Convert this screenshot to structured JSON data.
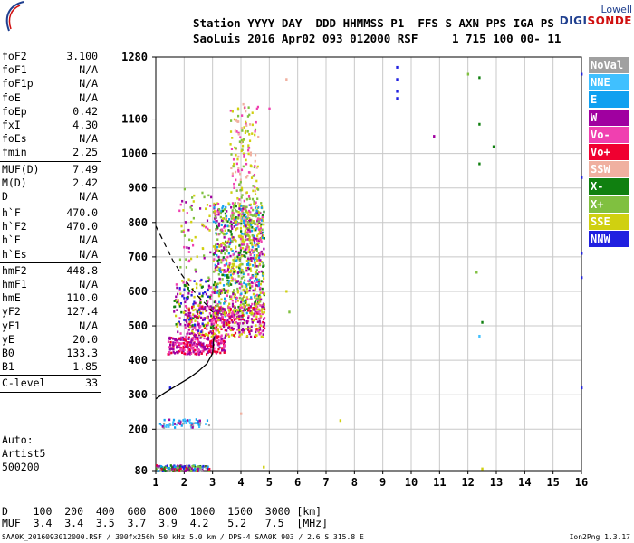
{
  "logo": {
    "line1": "Lowell",
    "line2a": "DIGI",
    "line2b": "SONDE"
  },
  "header": {
    "labels": "Station YYYY DAY  DDD HHMMSS P1  FFS S AXN PPS IGA PS",
    "values": "SaoLuis 2016 Apr02 093 012000 RSF     1 715 100 00- 11"
  },
  "params": [
    {
      "label": "foF2",
      "value": "3.100"
    },
    {
      "label": "foF1",
      "value": "N/A"
    },
    {
      "label": "foF1p",
      "value": "N/A"
    },
    {
      "label": "foE",
      "value": "N/A"
    },
    {
      "label": "foEp",
      "value": "0.42"
    },
    {
      "label": "fxI",
      "value": "4.30"
    },
    {
      "label": "foEs",
      "value": "N/A"
    },
    {
      "label": "fmin",
      "value": "2.25"
    },
    {
      "sep": true
    },
    {
      "label": "MUF(D)",
      "value": "7.49"
    },
    {
      "label": "M(D)",
      "value": "2.42"
    },
    {
      "label": "D",
      "value": "N/A"
    },
    {
      "sep": true
    },
    {
      "label": "h`F",
      "value": "470.0"
    },
    {
      "label": "h`F2",
      "value": "470.0"
    },
    {
      "label": "h`E",
      "value": "N/A"
    },
    {
      "label": "h`Es",
      "value": "N/A"
    },
    {
      "sep": true
    },
    {
      "label": "hmF2",
      "value": "448.8"
    },
    {
      "label": "hmF1",
      "value": "N/A"
    },
    {
      "label": "hmE",
      "value": "110.0"
    },
    {
      "label": "yF2",
      "value": "127.4"
    },
    {
      "label": "yF1",
      "value": "N/A"
    },
    {
      "label": "yE",
      "value": "20.0"
    },
    {
      "label": "B0",
      "value": "133.3"
    },
    {
      "label": "B1",
      "value": "1.85"
    },
    {
      "sep": true
    },
    {
      "label": "C-level",
      "value": "33"
    },
    {
      "sep": true
    }
  ],
  "auto": {
    "line1": "Auto:",
    "line2": "Artist5",
    "line3": "500200"
  },
  "legend": [
    {
      "label": "NoVal",
      "color": "#a0a0a0"
    },
    {
      "label": "NNE",
      "color": "#40c0ff"
    },
    {
      "label": "E",
      "color": "#10a0f0"
    },
    {
      "label": "W",
      "color": "#a000a0"
    },
    {
      "label": "Vo-",
      "color": "#f040b0"
    },
    {
      "label": "Vo+",
      "color": "#f00030"
    },
    {
      "label": "SSW",
      "color": "#f0b0a0"
    },
    {
      "label": "X-",
      "color": "#108010"
    },
    {
      "label": "X+",
      "color": "#80c040"
    },
    {
      "label": "SSE",
      "color": "#d0d010"
    },
    {
      "label": "NNW",
      "color": "#2020e0"
    }
  ],
  "table": {
    "row1": "D    100  200  400  600  800  1000  1500  3000 [km]",
    "row2": "MUF  3.4  3.4  3.5  3.7  3.9  4.2   5.2   7.5  [MHz]"
  },
  "footer": {
    "left": "SAA0K_2016093012000.RSF / 300fx256h 50 kHz 5.0 km / DPS-4 SAA0K 903 / 2.6 S 315.8 E",
    "right": "Ion2Png 1.3.17"
  },
  "chart_data": {
    "type": "scatter",
    "xlim": [
      1,
      16
    ],
    "ylim": [
      80,
      1280
    ],
    "x_ticks": [
      1,
      2,
      3,
      4,
      5,
      6,
      7,
      8,
      9,
      10,
      11,
      12,
      13,
      14,
      15,
      16
    ],
    "y_ticks": [
      80,
      200,
      300,
      400,
      500,
      600,
      700,
      800,
      900,
      1000,
      1100,
      1280
    ],
    "grid": true,
    "trace": [
      [
        1.0,
        288
      ],
      [
        1.3,
        305
      ],
      [
        1.6,
        320
      ],
      [
        1.9,
        335
      ],
      [
        2.2,
        350
      ],
      [
        2.5,
        368
      ],
      [
        2.8,
        390
      ],
      [
        3.0,
        420
      ],
      [
        3.05,
        470
      ]
    ],
    "dashed_trace": [
      [
        1.0,
        790
      ],
      [
        1.3,
        740
      ],
      [
        1.6,
        690
      ],
      [
        1.9,
        650
      ],
      [
        2.2,
        615
      ],
      [
        2.5,
        585
      ],
      [
        2.8,
        560
      ],
      [
        3.0,
        540
      ]
    ],
    "clusters": [
      {
        "x": [
          3.0,
          4.8
        ],
        "y": [
          530,
          860
        ],
        "colors": [
          "SSE",
          "SSE",
          "X+",
          "X-",
          "W",
          "Vo-",
          "E"
        ],
        "n": 900
      },
      {
        "x": [
          3.6,
          4.6
        ],
        "y": [
          800,
          1150
        ],
        "colors": [
          "SSE",
          "Vo-",
          "SSW",
          "X+"
        ],
        "n": 180
      },
      {
        "x": [
          2.0,
          4.8
        ],
        "y": [
          470,
          560
        ],
        "colors": [
          "Vo+",
          "Vo-",
          "W",
          "SSE"
        ],
        "n": 400
      },
      {
        "x": [
          1.4,
          3.4
        ],
        "y": [
          420,
          470
        ],
        "colors": [
          "Vo+",
          "Vo-",
          "W"
        ],
        "n": 260
      },
      {
        "x": [
          1.6,
          3.0
        ],
        "y": [
          480,
          640
        ],
        "colors": [
          "W",
          "SSE",
          "X-",
          "Vo-",
          "NNW"
        ],
        "n": 150
      },
      {
        "x": [
          1.8,
          3.2
        ],
        "y": [
          640,
          900
        ],
        "colors": [
          "W",
          "Vo-",
          "X+",
          "SSE"
        ],
        "n": 70
      },
      {
        "x": [
          1.0,
          2.9
        ],
        "y": [
          82,
          98
        ],
        "colors": [
          "X-",
          "W",
          "X+",
          "Vo+",
          "NNW",
          "E",
          "NoVal"
        ],
        "n": 140
      },
      {
        "x": [
          1.1,
          2.9
        ],
        "y": [
          208,
          232
        ],
        "colors": [
          "E",
          "NoVal",
          "NNE",
          "W"
        ],
        "n": 60
      }
    ],
    "isolated_points": [
      {
        "x": 9.5,
        "y": 1250,
        "c": "NNW"
      },
      {
        "x": 9.5,
        "y": 1215,
        "c": "NNW"
      },
      {
        "x": 9.5,
        "y": 1180,
        "c": "NNW"
      },
      {
        "x": 9.5,
        "y": 1160,
        "c": "NNW"
      },
      {
        "x": 10.8,
        "y": 1050,
        "c": "W"
      },
      {
        "x": 12.4,
        "y": 1220,
        "c": "X-"
      },
      {
        "x": 12.4,
        "y": 1085,
        "c": "X-"
      },
      {
        "x": 12.4,
        "y": 970,
        "c": "X-"
      },
      {
        "x": 12.9,
        "y": 1020,
        "c": "X-"
      },
      {
        "x": 12.5,
        "y": 510,
        "c": "X-"
      },
      {
        "x": 12.4,
        "y": 470,
        "c": "NNE"
      },
      {
        "x": 12.3,
        "y": 655,
        "c": "X+"
      },
      {
        "x": 16.0,
        "y": 1230,
        "c": "NNW"
      },
      {
        "x": 16.0,
        "y": 930,
        "c": "NNW"
      },
      {
        "x": 16.0,
        "y": 710,
        "c": "NNW"
      },
      {
        "x": 16.0,
        "y": 640,
        "c": "NNW"
      },
      {
        "x": 16.0,
        "y": 320,
        "c": "NNW"
      },
      {
        "x": 7.5,
        "y": 225,
        "c": "SSE"
      },
      {
        "x": 12.5,
        "y": 85,
        "c": "SSE"
      },
      {
        "x": 5.6,
        "y": 1215,
        "c": "SSW"
      },
      {
        "x": 5.0,
        "y": 1130,
        "c": "Vo-"
      },
      {
        "x": 5.6,
        "y": 600,
        "c": "SSE"
      },
      {
        "x": 5.7,
        "y": 540,
        "c": "X+"
      },
      {
        "x": 4.8,
        "y": 90,
        "c": "SSE"
      },
      {
        "x": 12.0,
        "y": 1230,
        "c": "X+"
      },
      {
        "x": 4.0,
        "y": 245,
        "c": "SSW"
      },
      {
        "x": 1.5,
        "y": 320,
        "c": "NNW"
      }
    ]
  }
}
